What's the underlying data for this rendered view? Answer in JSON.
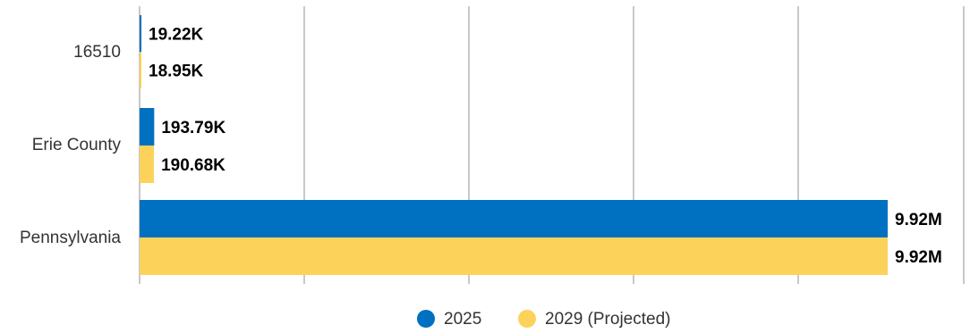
{
  "chart_data": {
    "type": "bar",
    "orientation": "horizontal",
    "categories": [
      "16510",
      "Erie County",
      "Pennsylvania"
    ],
    "series": [
      {
        "name": "2025",
        "color": "#0070c0",
        "values": [
          19220,
          193790,
          9920000
        ],
        "labels": [
          "19.22K",
          "193.79K",
          "9.92M"
        ]
      },
      {
        "name": "2029 (Projected)",
        "color": "#fcd25a",
        "values": [
          18950,
          190680,
          9920000
        ],
        "labels": [
          "18.95K",
          "190.68K",
          "9.92M"
        ]
      }
    ],
    "xlim": [
      0,
      10000000
    ],
    "grid": true,
    "legend_position": "bottom"
  }
}
